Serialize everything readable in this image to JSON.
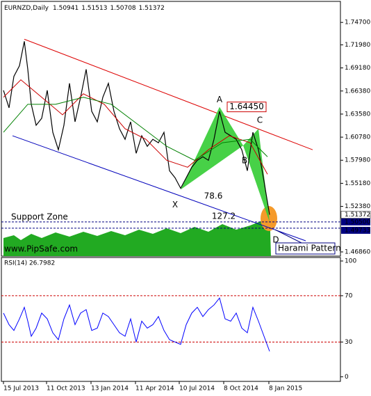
{
  "chart_data": {
    "type": "line",
    "title": "EURNZD,Daily",
    "ohlc_labels": [
      "1.50941",
      "1.51513",
      "1.50708",
      "1.51372"
    ],
    "x": [
      0,
      8,
      15,
      23,
      30,
      35,
      40,
      47,
      55,
      63,
      71,
      79,
      87,
      95,
      103,
      111,
      119,
      127,
      135,
      143,
      151,
      159,
      167,
      175,
      183,
      191,
      199,
      207,
      215,
      223,
      231,
      239,
      247,
      255,
      263,
      271,
      279,
      287,
      295,
      303,
      311,
      319,
      327,
      335,
      343,
      351,
      359,
      367,
      375,
      383
    ],
    "xlim": [
      -3,
      485
    ],
    "xticks": [
      {
        "value": 0,
        "label": "15 Jul 2013"
      },
      {
        "value": 62,
        "label": "11 Oct 2013"
      },
      {
        "value": 126,
        "label": "13 Jan 2014"
      },
      {
        "value": 190,
        "label": "11 Apr 2014"
      },
      {
        "value": 253,
        "label": "10 Jul 2014"
      },
      {
        "value": 317,
        "label": "8 Oct 2014"
      },
      {
        "value": 382,
        "label": "8 Jan 2015"
      }
    ],
    "ylim": [
      1.4635,
      1.7725
    ],
    "yticks": [
      {
        "value": 1.747,
        "label": "1.74700"
      },
      {
        "value": 1.7198,
        "label": "1.71980"
      },
      {
        "value": 1.6918,
        "label": "1.69180"
      },
      {
        "value": 1.6638,
        "label": "1.66380"
      },
      {
        "value": 1.6358,
        "label": "1.63580"
      },
      {
        "value": 1.6078,
        "label": "1.60780"
      },
      {
        "value": 1.5798,
        "label": "1.57980"
      },
      {
        "value": 1.5518,
        "label": "1.55180"
      },
      {
        "value": 1.5238,
        "label": "1.52380"
      },
      {
        "value": 1.4686,
        "label": "1.46860"
      }
    ],
    "series": [
      {
        "color": "#000000",
        "values": [
          1.6646,
          1.6434,
          1.6816,
          1.6944,
          1.7241,
          1.6901,
          1.6477,
          1.6222,
          1.6307,
          1.6646,
          1.6137,
          1.5925,
          1.6222,
          1.6731,
          1.6264,
          1.6562,
          1.6901,
          1.6392,
          1.6264,
          1.6562,
          1.6731,
          1.6392,
          1.618,
          1.6052,
          1.6264,
          1.5882,
          1.6095,
          1.5967,
          1.6052,
          1.601,
          1.6137,
          1.567,
          1.5585,
          1.5458,
          1.5585,
          1.5713,
          1.5797,
          1.584,
          1.5797,
          1.6052,
          1.6392,
          1.6137,
          1.6095,
          1.6052,
          1.5925,
          1.567,
          1.6137,
          1.5925,
          1.5543,
          1.5137
        ]
      },
      {
        "color": "#cc0000",
        "x": [
          0,
          25,
          55,
          85,
          115,
          145,
          175,
          205,
          235,
          265,
          295,
          325,
          355,
          380
        ],
        "values": [
          1.6562,
          1.6774,
          1.6562,
          1.6349,
          1.6604,
          1.6477,
          1.618,
          1.6052,
          1.5797,
          1.5713,
          1.5925,
          1.6095,
          1.601,
          1.5628
        ]
      },
      {
        "color": "#008000",
        "x": [
          0,
          35,
          75,
          115,
          155,
          195,
          235,
          275,
          315,
          355,
          380
        ],
        "values": [
          1.6137,
          1.6477,
          1.6477,
          1.6562,
          1.6477,
          1.6222,
          1.5967,
          1.5797,
          1.601,
          1.6052,
          1.584
        ]
      }
    ],
    "last_price": {
      "value": 1.51372,
      "label": "1.51372"
    },
    "price_lines": [
      {
        "value": 1.505,
        "label": "1.50500",
        "color": "#000080"
      },
      {
        "value": 1.49733,
        "label": "1.49733",
        "color": "#000080"
      }
    ],
    "trendlines": [
      {
        "color": "#dd0000",
        "x": [
          30,
          445
        ],
        "values": [
          1.7266,
          1.5925
        ]
      },
      {
        "color": "#0000bb",
        "x": [
          13,
          435
        ],
        "values": [
          1.6095,
          1.4821
        ]
      }
    ],
    "pattern": {
      "color": "#33cc33",
      "points": [
        {
          "label": "X",
          "x": 255,
          "value": 1.5442
        },
        {
          "label": "A",
          "x": 311,
          "value": 1.6445
        },
        {
          "label": "B",
          "x": 345,
          "value": 1.5976
        },
        {
          "label": "C",
          "x": 367,
          "value": 1.618
        },
        {
          "label": "D",
          "x": 383,
          "value": 1.505
        }
      ]
    },
    "peak_label": {
      "value": 1.6445,
      "label": "1.64450"
    },
    "fib": [
      78.6,
      127.2
    ],
    "annotations": [
      "Support Zone",
      "www.PipSafe.com",
      "Harami Pattern"
    ],
    "rsi": {
      "title": "RSI(14) 26.7982",
      "color": "#0000ff",
      "ylim": [
        -4,
        103
      ],
      "yticks": [
        100,
        70,
        30,
        0
      ],
      "levels": [
        70,
        30
      ],
      "level_color": "#cc0000",
      "values": [
        55,
        45,
        40,
        50,
        60,
        48,
        35,
        42,
        55,
        50,
        38,
        32,
        50,
        62,
        45,
        55,
        58,
        40,
        42,
        55,
        52,
        45,
        38,
        35,
        50,
        30,
        48,
        42,
        45,
        52,
        40,
        32,
        30,
        28,
        45,
        55,
        60,
        52,
        58,
        62,
        68,
        50,
        48,
        55,
        42,
        38,
        60,
        48,
        35,
        22
      ]
    }
  }
}
